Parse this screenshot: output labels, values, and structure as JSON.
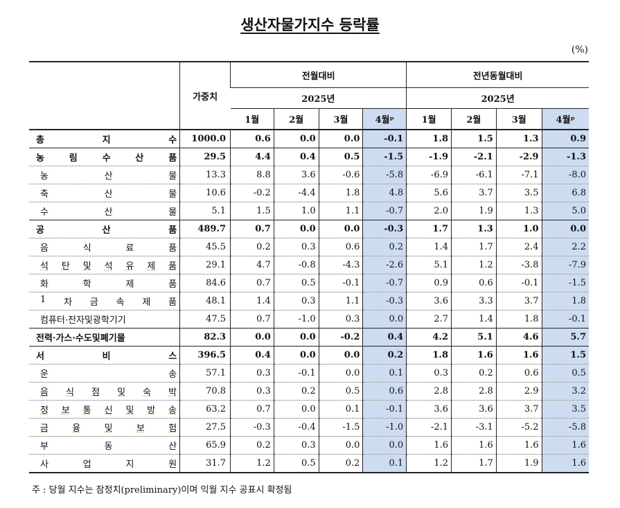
{
  "title": "생산자물가지수 등락률",
  "unit": "(%)",
  "header": {
    "weight": "가중치",
    "mom": "전월대비",
    "yoy": "전년동월대비",
    "year": "2025년",
    "months": [
      "1월",
      "2월",
      "3월",
      "4월ᵖ"
    ]
  },
  "rows": [
    {
      "label": "총 지 수",
      "weight": "1000.0",
      "mom": [
        "0.6",
        "0.0",
        "0.0",
        "-0.1"
      ],
      "yoy": [
        "1.8",
        "1.5",
        "1.3",
        "0.9"
      ],
      "major": true
    },
    {
      "label": "농 림 수 산 품",
      "weight": "29.5",
      "mom": [
        "4.4",
        "0.4",
        "0.5",
        "-1.5"
      ],
      "yoy": [
        "-1.9",
        "-2.1",
        "-2.9",
        "-1.3"
      ],
      "major": true
    },
    {
      "label": "농 산 물",
      "weight": "13.3",
      "mom": [
        "8.8",
        "3.6",
        "-0.6",
        "-5.8"
      ],
      "yoy": [
        "-6.9",
        "-6.1",
        "-7.1",
        "-8.0"
      ]
    },
    {
      "label": "축 산 물",
      "weight": "10.6",
      "mom": [
        "-0.2",
        "-4.4",
        "1.8",
        "4.8"
      ],
      "yoy": [
        "5.6",
        "3.7",
        "3.5",
        "6.8"
      ]
    },
    {
      "label": "수 산 물",
      "weight": "5.1",
      "mom": [
        "1.5",
        "1.0",
        "1.1",
        "-0.7"
      ],
      "yoy": [
        "2.0",
        "1.9",
        "1.3",
        "5.0"
      ]
    },
    {
      "label": "공 산 품",
      "weight": "489.7",
      "mom": [
        "0.7",
        "0.0",
        "0.0",
        "-0.3"
      ],
      "yoy": [
        "1.7",
        "1.3",
        "1.0",
        "0.0"
      ],
      "major": true
    },
    {
      "label": "음 식 료 품",
      "weight": "45.5",
      "mom": [
        "0.2",
        "0.3",
        "0.6",
        "0.2"
      ],
      "yoy": [
        "1.4",
        "1.7",
        "2.4",
        "2.2"
      ]
    },
    {
      "label": "석 탄 및 석 유 제 품",
      "weight": "29.1",
      "mom": [
        "4.7",
        "-0.8",
        "-4.3",
        "-2.6"
      ],
      "yoy": [
        "5.1",
        "1.2",
        "-3.8",
        "-7.9"
      ],
      "uline": true
    },
    {
      "label": "화 학 제 품",
      "weight": "84.6",
      "mom": [
        "0.7",
        "0.5",
        "-0.1",
        "-0.7"
      ],
      "yoy": [
        "0.9",
        "0.6",
        "-0.1",
        "-1.5"
      ]
    },
    {
      "label": "1 차 금 속 제 품",
      "weight": "48.1",
      "mom": [
        "1.4",
        "0.3",
        "1.1",
        "-0.3"
      ],
      "yoy": [
        "3.6",
        "3.3",
        "3.7",
        "1.8"
      ]
    },
    {
      "label": "컴퓨터·전자및광학기기",
      "weight": "47.5",
      "mom": [
        "0.7",
        "-1.0",
        "0.3",
        "0.0"
      ],
      "yoy": [
        "2.7",
        "1.4",
        "1.8",
        "-0.1"
      ],
      "nospread": true
    },
    {
      "label": "전력·가스·수도및폐기물",
      "weight": "82.3",
      "mom": [
        "0.0",
        "0.0",
        "-0.2",
        "0.4"
      ],
      "yoy": [
        "4.2",
        "5.1",
        "4.6",
        "5.7"
      ],
      "major": true,
      "nospread": true
    },
    {
      "label": "서 비 스",
      "weight": "396.5",
      "mom": [
        "0.4",
        "0.0",
        "0.0",
        "0.2"
      ],
      "yoy": [
        "1.8",
        "1.6",
        "1.6",
        "1.5"
      ],
      "major": true
    },
    {
      "label": "운 송",
      "weight": "57.1",
      "mom": [
        "0.3",
        "-0.1",
        "0.0",
        "0.1"
      ],
      "yoy": [
        "0.3",
        "0.2",
        "0.6",
        "0.5"
      ]
    },
    {
      "label": "음 식 점 및 숙 박",
      "weight": "70.8",
      "mom": [
        "0.3",
        "0.2",
        "0.5",
        "0.6"
      ],
      "yoy": [
        "2.8",
        "2.8",
        "2.9",
        "3.2"
      ],
      "uline": true
    },
    {
      "label": "정 보 통 신 및 방 송",
      "weight": "63.2",
      "mom": [
        "0.7",
        "0.0",
        "0.1",
        "-0.1"
      ],
      "yoy": [
        "3.6",
        "3.6",
        "3.7",
        "3.5"
      ],
      "uline": true
    },
    {
      "label": "금 융 및 보 험",
      "weight": "27.5",
      "mom": [
        "-0.3",
        "-0.4",
        "-1.5",
        "-1.0"
      ],
      "yoy": [
        "-2.1",
        "-3.1",
        "-5.2",
        "-5.8"
      ],
      "uline": true
    },
    {
      "label": "부 동 산",
      "weight": "65.9",
      "mom": [
        "0.2",
        "0.3",
        "0.0",
        "0.0"
      ],
      "yoy": [
        "1.6",
        "1.6",
        "1.6",
        "1.6"
      ]
    },
    {
      "label": "사 업 지 원",
      "weight": "31.7",
      "mom": [
        "1.2",
        "0.5",
        "0.2",
        "0.1"
      ],
      "yoy": [
        "1.2",
        "1.7",
        "1.9",
        "1.6"
      ]
    }
  ],
  "note": "주 : 당월 지수는 잠정치(preliminary)이며 익월 지수 공표시 확정됨",
  "colors": {
    "highlight": "#cddcf0",
    "border": "#222222"
  }
}
